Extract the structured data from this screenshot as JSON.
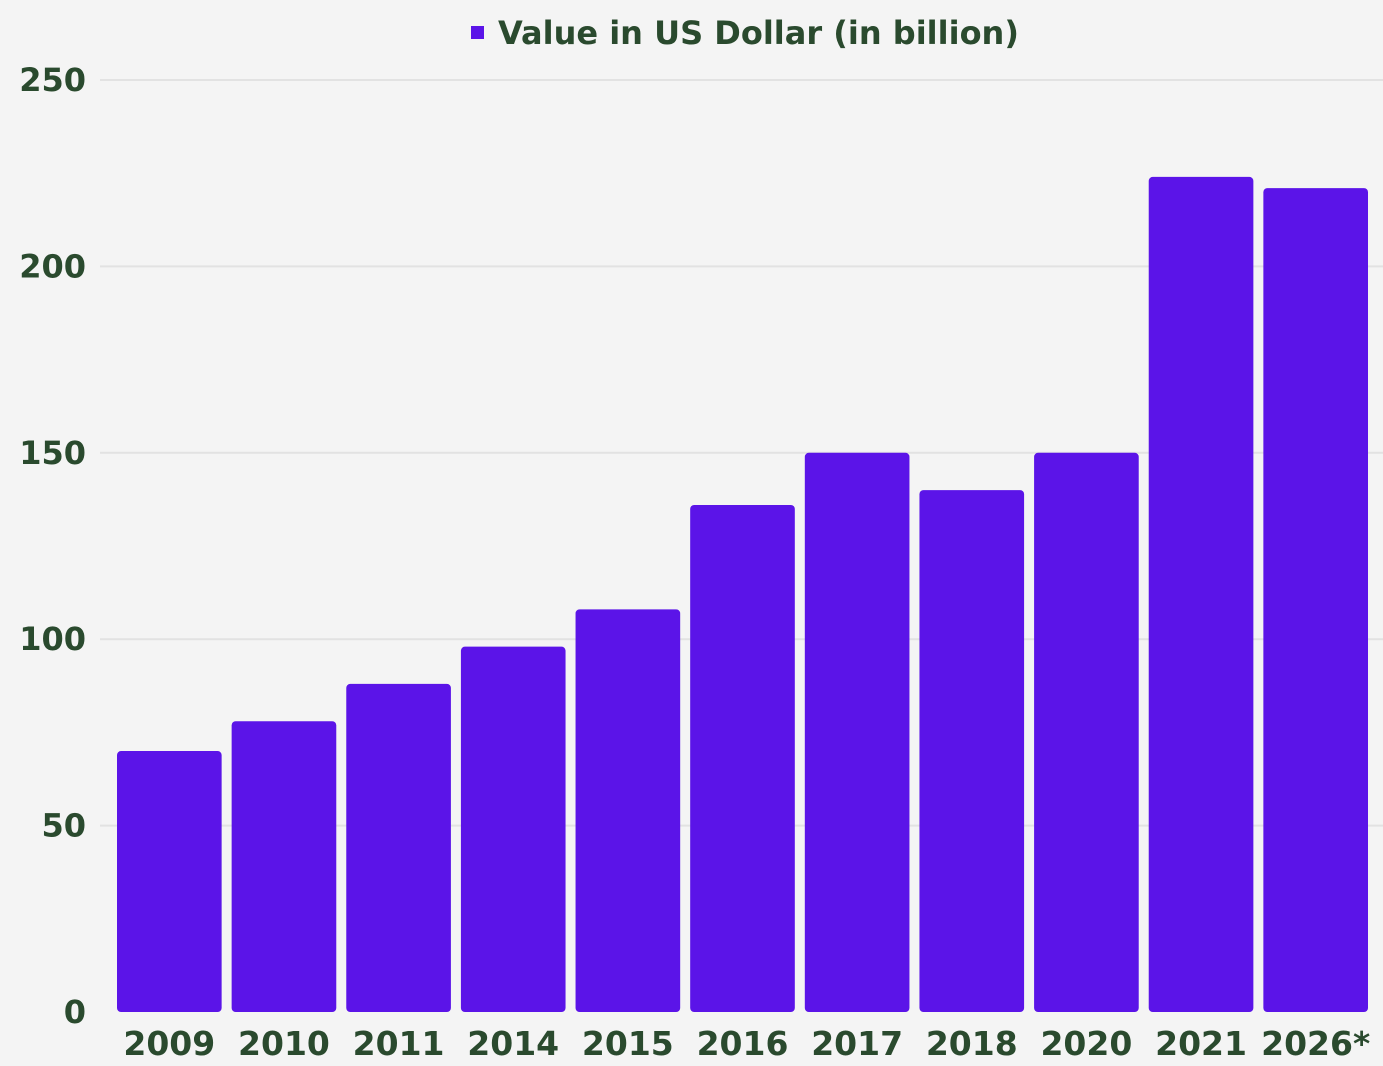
{
  "chart_data": {
    "type": "bar",
    "categories": [
      "2009",
      "2010",
      "2011",
      "2014",
      "2015",
      "2016",
      "2017",
      "2018",
      "2020",
      "2021",
      "2026*"
    ],
    "series": [
      {
        "name": "Value in US Dollar (in billion)",
        "values": [
          70,
          78,
          88,
          98,
          108,
          136,
          150,
          140,
          150,
          224,
          221
        ],
        "color": "#5b14e8"
      }
    ],
    "yticks": [
      0,
      50,
      100,
      150,
      200,
      250
    ],
    "ylim": [
      0,
      250
    ],
    "grid": true,
    "legend_position": "top-center"
  }
}
